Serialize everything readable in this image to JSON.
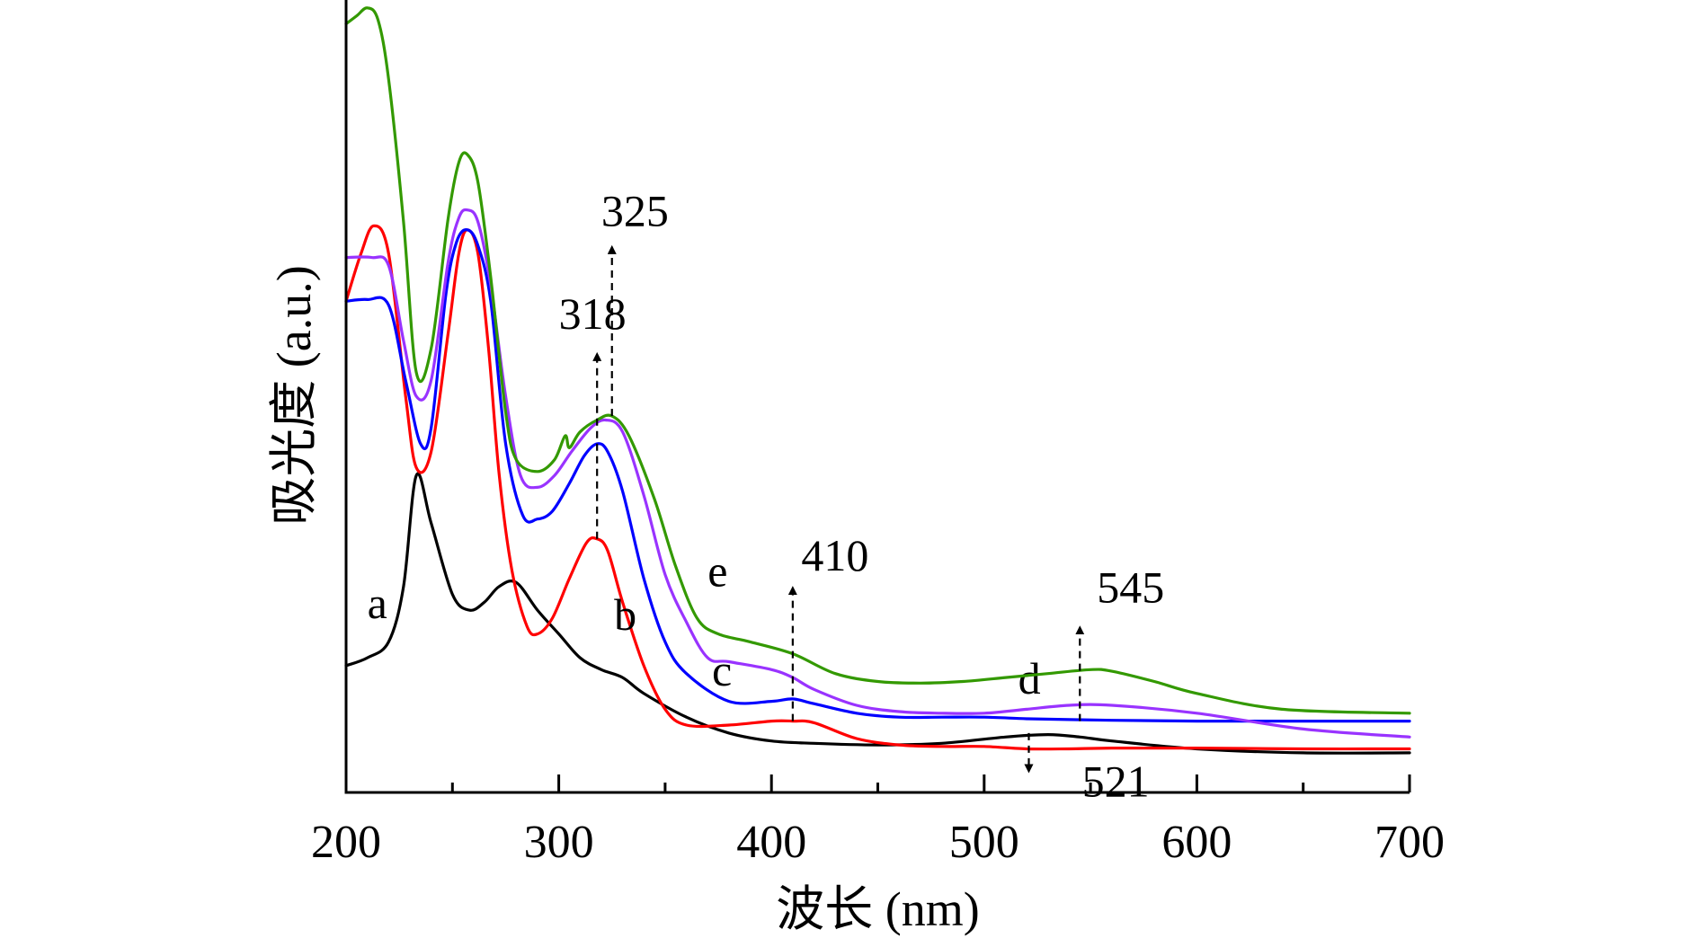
{
  "chart_data": {
    "type": "line",
    "xlabel": "波长 (nm)",
    "ylabel": "吸光度 (a.u.)",
    "xlim": [
      200,
      700
    ],
    "ylim": [
      0,
      100
    ],
    "xticks": [
      "200",
      "300",
      "400",
      "500",
      "600",
      "700"
    ],
    "x_minor_ticks": [
      250,
      350,
      450,
      550,
      650
    ],
    "y_ticks_shown": false,
    "grid": false,
    "legend": "none",
    "series": [
      {
        "name": "a",
        "color": "#000000",
        "label_at": [
          210,
          22
        ],
        "points": [
          [
            200,
            16
          ],
          [
            210,
            17
          ],
          [
            220,
            19
          ],
          [
            227,
            26
          ],
          [
            233,
            40
          ],
          [
            240,
            34
          ],
          [
            250,
            25
          ],
          [
            258,
            23
          ],
          [
            265,
            24
          ],
          [
            272,
            26
          ],
          [
            280,
            26.5
          ],
          [
            290,
            23
          ],
          [
            300,
            20
          ],
          [
            310,
            17
          ],
          [
            320,
            15.5
          ],
          [
            330,
            14.5
          ],
          [
            340,
            12.5
          ],
          [
            360,
            9.5
          ],
          [
            380,
            7.5
          ],
          [
            400,
            6.5
          ],
          [
            420,
            6.2
          ],
          [
            450,
            6
          ],
          [
            480,
            6.2
          ],
          [
            510,
            7
          ],
          [
            530,
            7.3
          ],
          [
            545,
            7
          ],
          [
            560,
            6.5
          ],
          [
            600,
            5.5
          ],
          [
            650,
            5
          ],
          [
            700,
            5
          ]
        ]
      },
      {
        "name": "b",
        "color": "#ff0000",
        "label_at": [
          326,
          20.5
        ],
        "points": [
          [
            200,
            62
          ],
          [
            207,
            68
          ],
          [
            213,
            71.5
          ],
          [
            220,
            68
          ],
          [
            228,
            50
          ],
          [
            233,
            41
          ],
          [
            240,
            43
          ],
          [
            248,
            58
          ],
          [
            253,
            68
          ],
          [
            257,
            71
          ],
          [
            262,
            68
          ],
          [
            267,
            56
          ],
          [
            272,
            40
          ],
          [
            278,
            28
          ],
          [
            285,
            21
          ],
          [
            290,
            20
          ],
          [
            297,
            22
          ],
          [
            305,
            27
          ],
          [
            313,
            31.5
          ],
          [
            318,
            32
          ],
          [
            323,
            30.5
          ],
          [
            330,
            24
          ],
          [
            340,
            16
          ],
          [
            350,
            10.5
          ],
          [
            360,
            8.5
          ],
          [
            380,
            8.5
          ],
          [
            400,
            9
          ],
          [
            410,
            9
          ],
          [
            420,
            8.8
          ],
          [
            440,
            6.8
          ],
          [
            460,
            6
          ],
          [
            480,
            5.8
          ],
          [
            500,
            5.8
          ],
          [
            520,
            5.5
          ],
          [
            540,
            5.5
          ],
          [
            560,
            5.6
          ],
          [
            600,
            5.6
          ],
          [
            650,
            5.5
          ],
          [
            700,
            5.5
          ]
        ]
      },
      {
        "name": "c",
        "color": "#0000ff",
        "label_at": [
          372,
          13.5
        ],
        "points": [
          [
            200,
            62
          ],
          [
            210,
            62.2
          ],
          [
            220,
            61.5
          ],
          [
            228,
            52
          ],
          [
            235,
            44
          ],
          [
            240,
            46
          ],
          [
            247,
            63
          ],
          [
            252,
            69.5
          ],
          [
            257,
            71
          ],
          [
            262,
            69
          ],
          [
            268,
            62
          ],
          [
            275,
            44
          ],
          [
            283,
            35
          ],
          [
            290,
            34.5
          ],
          [
            297,
            35.5
          ],
          [
            305,
            39
          ],
          [
            312,
            42.5
          ],
          [
            318,
            44
          ],
          [
            323,
            43
          ],
          [
            330,
            38
          ],
          [
            340,
            27
          ],
          [
            350,
            19
          ],
          [
            360,
            15
          ],
          [
            380,
            11.5
          ],
          [
            400,
            11.5
          ],
          [
            410,
            11.8
          ],
          [
            420,
            11.2
          ],
          [
            440,
            10
          ],
          [
            460,
            9.5
          ],
          [
            480,
            9.5
          ],
          [
            500,
            9.5
          ],
          [
            520,
            9.3
          ],
          [
            540,
            9.2
          ],
          [
            560,
            9.1
          ],
          [
            600,
            9
          ],
          [
            650,
            9
          ],
          [
            700,
            9
          ]
        ]
      },
      {
        "name": "d",
        "color": "#9933ff",
        "label_at": [
          516,
          12.5
        ],
        "points": [
          [
            200,
            67.5
          ],
          [
            212,
            67.5
          ],
          [
            220,
            66.5
          ],
          [
            227,
            57
          ],
          [
            233,
            50
          ],
          [
            240,
            52
          ],
          [
            248,
            67
          ],
          [
            253,
            72.5
          ],
          [
            257,
            73.5
          ],
          [
            262,
            72
          ],
          [
            268,
            64
          ],
          [
            275,
            50
          ],
          [
            282,
            40
          ],
          [
            290,
            38.5
          ],
          [
            298,
            40
          ],
          [
            306,
            43
          ],
          [
            315,
            46
          ],
          [
            322,
            47
          ],
          [
            330,
            45.5
          ],
          [
            340,
            37.5
          ],
          [
            350,
            27.5
          ],
          [
            360,
            21.5
          ],
          [
            370,
            17
          ],
          [
            380,
            16.5
          ],
          [
            400,
            15.5
          ],
          [
            410,
            14.5
          ],
          [
            420,
            13
          ],
          [
            440,
            11
          ],
          [
            460,
            10.2
          ],
          [
            480,
            10
          ],
          [
            500,
            10
          ],
          [
            520,
            10.5
          ],
          [
            540,
            11
          ],
          [
            560,
            11
          ],
          [
            600,
            10
          ],
          [
            650,
            8
          ],
          [
            700,
            7
          ]
        ]
      },
      {
        "name": "e",
        "color": "#339900",
        "label_at": [
          370,
          26
        ],
        "points": [
          [
            200,
            97
          ],
          [
            205,
            98
          ],
          [
            210,
            99
          ],
          [
            215,
            97.5
          ],
          [
            220,
            90
          ],
          [
            227,
            72
          ],
          [
            233,
            53
          ],
          [
            240,
            56
          ],
          [
            248,
            72.5
          ],
          [
            253,
            79.5
          ],
          [
            257,
            80.5
          ],
          [
            262,
            77
          ],
          [
            268,
            65
          ],
          [
            275,
            48
          ],
          [
            280,
            42
          ],
          [
            290,
            40.5
          ],
          [
            298,
            42
          ],
          [
            303,
            45
          ],
          [
            305,
            43.5
          ],
          [
            310,
            45.5
          ],
          [
            318,
            47
          ],
          [
            325,
            47.5
          ],
          [
            333,
            45
          ],
          [
            345,
            37
          ],
          [
            355,
            28.5
          ],
          [
            365,
            22
          ],
          [
            375,
            20
          ],
          [
            390,
            19
          ],
          [
            410,
            17.5
          ],
          [
            430,
            15
          ],
          [
            450,
            14
          ],
          [
            470,
            13.8
          ],
          [
            490,
            14
          ],
          [
            510,
            14.5
          ],
          [
            530,
            15
          ],
          [
            550,
            15.5
          ],
          [
            560,
            15.3
          ],
          [
            580,
            14
          ],
          [
            600,
            12.5
          ],
          [
            640,
            10.5
          ],
          [
            700,
            10
          ]
        ]
      }
    ],
    "annotations": [
      {
        "text": "318",
        "x": 318,
        "from": 32,
        "to": 55,
        "direction": "up",
        "label_at": [
          300,
          58.5
        ]
      },
      {
        "text": "325",
        "x": 325,
        "from": 47.5,
        "to": 68.5,
        "direction": "up",
        "label_at": [
          320,
          71.5
        ]
      },
      {
        "text": "410",
        "x": 410,
        "from": 9,
        "to": 25.5,
        "direction": "up",
        "label_at": [
          414,
          28
        ]
      },
      {
        "text": "545",
        "x": 545,
        "from": 9,
        "to": 20.5,
        "direction": "up",
        "label_at": [
          553,
          24
        ]
      },
      {
        "text": "521",
        "x": 521,
        "from": 7.5,
        "to": 3,
        "direction": "down",
        "label_at": [
          546,
          -0.5
        ]
      }
    ]
  }
}
